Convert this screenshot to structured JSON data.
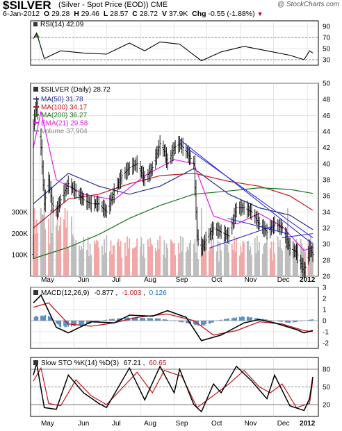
{
  "header": {
    "symbol": "$SILVER",
    "description": "(Silver - Spot Price (EOD))",
    "exchange": "CME",
    "credit": "@ StockCharts.com",
    "date": "6-Jan-2012",
    "open_label": "O",
    "open": "29.28",
    "high_label": "H",
    "high": "29.46",
    "low_label": "L",
    "low": "28.57",
    "close_label": "C",
    "close": "28.72",
    "volume_label": "V",
    "volume": "37.9K",
    "change_label": "Chg",
    "change": "-0.55 (-1.88%)"
  },
  "panels": {
    "rsi": {
      "label": "RSI(14) 42.09",
      "ticks": [
        30,
        50,
        70,
        90
      ],
      "levels": [
        30,
        70
      ],
      "fill_color": "#4c8a3c"
    },
    "price": {
      "label": "$SILVER (Daily) 28.72",
      "ticks": [
        26,
        28,
        30,
        32,
        34,
        36,
        38,
        40,
        42,
        44,
        46,
        48,
        50
      ],
      "volume_ticks": [
        "100K",
        "200K",
        "300K"
      ],
      "legend": [
        {
          "text": "MA(50) 31.78",
          "color": "#1f2a8a"
        },
        {
          "text": "MA(100) 34.17",
          "color": "#c0141c"
        },
        {
          "text": "MA(200) 36.27",
          "color": "#1f6e1f"
        },
        {
          "text": "EMA(21) 29.58",
          "color": "#e020e0"
        },
        {
          "text": "Volume 37,904",
          "color": "#888888"
        }
      ]
    },
    "macd": {
      "label_prefix": "MACD(12,26,9)",
      "macd_value": "-0.877",
      "signal_value": "-1.003",
      "hist_value": "0.126",
      "ticks": [
        -2,
        -1,
        0,
        1,
        2,
        3
      ]
    },
    "stoch": {
      "label_prefix": "Slow STO %K(14) %D(3)",
      "k_value": "67.21",
      "d_value": "60.65",
      "ticks": [
        20,
        50,
        80
      ]
    }
  },
  "xaxis": {
    "months": [
      "May",
      "Jun",
      "Jul",
      "Aug",
      "Sep",
      "Oct",
      "Nov",
      "Dec"
    ],
    "year_label": "2012"
  },
  "chart_data": {
    "type": "candlestick",
    "x_range": [
      "2011-04-25",
      "2012-01-06"
    ],
    "price_ylim": [
      26,
      50
    ],
    "price_points": [
      [
        "2011-04-25",
        45
      ],
      [
        "2011-04-28",
        47.5
      ],
      [
        "2011-05-02",
        42
      ],
      [
        "2011-05-05",
        35
      ],
      [
        "2011-05-09",
        38
      ],
      [
        "2011-05-12",
        35
      ],
      [
        "2011-05-16",
        34
      ],
      [
        "2011-05-20",
        35.5
      ],
      [
        "2011-05-27",
        37.5
      ],
      [
        "2011-06-03",
        36.5
      ],
      [
        "2011-06-10",
        35.5
      ],
      [
        "2011-06-17",
        35
      ],
      [
        "2011-06-24",
        35
      ],
      [
        "2011-07-01",
        34
      ],
      [
        "2011-07-08",
        36.5
      ],
      [
        "2011-07-15",
        38.5
      ],
      [
        "2011-07-22",
        39.5
      ],
      [
        "2011-07-29",
        40
      ],
      [
        "2011-08-05",
        38
      ],
      [
        "2011-08-12",
        39.5
      ],
      [
        "2011-08-19",
        42.5
      ],
      [
        "2011-08-23",
        41.5
      ],
      [
        "2011-08-26",
        40
      ],
      [
        "2011-09-01",
        42
      ],
      [
        "2011-09-06",
        42.5
      ],
      [
        "2011-09-12",
        41.5
      ],
      [
        "2011-09-19",
        40
      ],
      [
        "2011-09-22",
        31
      ],
      [
        "2011-09-26",
        29.5
      ],
      [
        "2011-09-30",
        30.5
      ],
      [
        "2011-10-07",
        32
      ],
      [
        "2011-10-14",
        31.5
      ],
      [
        "2011-10-21",
        31
      ],
      [
        "2011-10-28",
        34.5
      ],
      [
        "2011-11-04",
        34.5
      ],
      [
        "2011-11-11",
        34
      ],
      [
        "2011-11-18",
        32.5
      ],
      [
        "2011-11-25",
        31.5
      ],
      [
        "2011-12-02",
        32.5
      ],
      [
        "2011-12-09",
        32
      ],
      [
        "2011-12-16",
        29.5
      ],
      [
        "2011-12-22",
        29
      ],
      [
        "2011-12-29",
        26.5
      ],
      [
        "2012-01-03",
        29.5
      ],
      [
        "2012-01-06",
        28.72
      ]
    ],
    "moving_averages": {
      "MA(50)": [
        [
          "2011-04-25",
          35
        ],
        [
          "2011-05-27",
          38.8
        ],
        [
          "2011-06-24",
          37.2
        ],
        [
          "2011-07-22",
          36.2
        ],
        [
          "2011-08-19",
          37.2
        ],
        [
          "2011-09-19",
          39.4
        ],
        [
          "2011-10-21",
          36.2
        ],
        [
          "2011-11-18",
          34.5
        ],
        [
          "2011-12-16",
          33.6
        ],
        [
          "2012-01-06",
          31.8
        ]
      ],
      "MA(100)": [
        [
          "2011-04-25",
          32
        ],
        [
          "2011-05-27",
          35.6
        ],
        [
          "2011-06-24",
          36.2
        ],
        [
          "2011-07-22",
          37.5
        ],
        [
          "2011-08-19",
          38.5
        ],
        [
          "2011-09-19",
          38.8
        ],
        [
          "2011-10-21",
          37.8
        ],
        [
          "2011-11-18",
          37.2
        ],
        [
          "2011-12-16",
          36
        ],
        [
          "2012-01-06",
          34.2
        ]
      ],
      "MA(200)": [
        [
          "2011-04-25",
          28.2
        ],
        [
          "2011-05-27",
          29.6
        ],
        [
          "2011-06-24",
          31.2
        ],
        [
          "2011-07-22",
          33.2
        ],
        [
          "2011-08-19",
          34.8
        ],
        [
          "2011-09-19",
          36.2
        ],
        [
          "2011-10-21",
          36.6
        ],
        [
          "2011-11-18",
          37
        ],
        [
          "2011-12-16",
          36.8
        ],
        [
          "2012-01-06",
          36.3
        ]
      ],
      "EMA(21)": [
        [
          "2011-04-25",
          42
        ],
        [
          "2011-05-02",
          46.5
        ],
        [
          "2011-05-16",
          38
        ],
        [
          "2011-06-10",
          36.2
        ],
        [
          "2011-07-08",
          35.5
        ],
        [
          "2011-08-05",
          38.5
        ],
        [
          "2011-09-01",
          40.5
        ],
        [
          "2011-09-19",
          40
        ],
        [
          "2011-10-07",
          33.5
        ],
        [
          "2011-10-28",
          32.5
        ],
        [
          "2011-11-18",
          33.8
        ],
        [
          "2011-12-09",
          32.2
        ],
        [
          "2011-12-29",
          29.2
        ],
        [
          "2012-01-06",
          29.6
        ]
      ]
    },
    "trendlines": [
      [
        [
          "2011-09-06",
          43
        ],
        [
          "2012-01-06",
          30
        ]
      ],
      [
        [
          "2011-09-12",
          42
        ],
        [
          "2012-01-06",
          30.8
        ]
      ],
      [
        [
          "2011-10-03",
          29.5
        ],
        [
          "2011-12-02",
          32.3
        ]
      ],
      [
        [
          "2011-10-20",
          33.2
        ],
        [
          "2011-12-14",
          31.3
        ]
      ],
      [
        [
          "2011-12-09",
          30.8
        ],
        [
          "2012-01-06",
          31.3
        ]
      ]
    ],
    "volume_ylim": [
      0,
      350000
    ],
    "rsi_ylim": [
      20,
      100
    ],
    "rsi": [
      [
        "2011-04-25",
        68
      ],
      [
        "2011-04-28",
        78
      ],
      [
        "2011-05-05",
        32
      ],
      [
        "2011-05-20",
        46
      ],
      [
        "2011-06-10",
        42
      ],
      [
        "2011-07-01",
        40
      ],
      [
        "2011-07-22",
        60
      ],
      [
        "2011-08-05",
        46
      ],
      [
        "2011-08-19",
        62
      ],
      [
        "2011-09-06",
        58
      ],
      [
        "2011-09-26",
        28
      ],
      [
        "2011-10-14",
        44
      ],
      [
        "2011-11-04",
        54
      ],
      [
        "2011-11-25",
        46
      ],
      [
        "2011-12-16",
        38
      ],
      [
        "2011-12-29",
        30
      ],
      [
        "2012-01-03",
        46
      ],
      [
        "2012-01-06",
        42
      ]
    ],
    "macd_ylim": [
      -2.5,
      3
    ],
    "macd": [
      [
        "2011-04-25",
        1.6
      ],
      [
        "2011-05-02",
        2.3
      ],
      [
        "2011-05-16",
        -0.6
      ],
      [
        "2011-05-27",
        -1.1
      ],
      [
        "2011-06-17",
        -0.1
      ],
      [
        "2011-07-08",
        -0.2
      ],
      [
        "2011-07-22",
        0.5
      ],
      [
        "2011-08-12",
        0.4
      ],
      [
        "2011-08-26",
        0.9
      ],
      [
        "2011-09-12",
        0.3
      ],
      [
        "2011-09-26",
        -1.8
      ],
      [
        "2011-10-14",
        -1.3
      ],
      [
        "2011-11-04",
        -0.2
      ],
      [
        "2011-11-18",
        0.1
      ],
      [
        "2011-12-02",
        -0.2
      ],
      [
        "2011-12-22",
        -0.8
      ],
      [
        "2011-12-29",
        -1.1
      ],
      [
        "2012-01-06",
        -0.88
      ]
    ],
    "macd_signal": [
      [
        "2011-04-25",
        1.2
      ],
      [
        "2011-05-09",
        1.6
      ],
      [
        "2011-05-27",
        -0.3
      ],
      [
        "2011-06-17",
        -0.5
      ],
      [
        "2011-07-08",
        -0.2
      ],
      [
        "2011-07-29",
        0.3
      ],
      [
        "2011-08-26",
        0.6
      ],
      [
        "2011-09-19",
        0
      ],
      [
        "2011-10-07",
        -1.3
      ],
      [
        "2011-10-28",
        -0.9
      ],
      [
        "2011-11-18",
        -0.1
      ],
      [
        "2011-12-09",
        -0.3
      ],
      [
        "2011-12-29",
        -0.9
      ],
      [
        "2012-01-06",
        -1.0
      ]
    ],
    "macd_histogram": [
      [
        "2011-04-25",
        0.4
      ],
      [
        "2011-05-09",
        0.5
      ],
      [
        "2011-05-20",
        -0.6
      ],
      [
        "2011-06-10",
        -0.4
      ],
      [
        "2011-07-01",
        0.1
      ],
      [
        "2011-07-22",
        0.3
      ],
      [
        "2011-08-19",
        0.2
      ],
      [
        "2011-09-12",
        -0.2
      ],
      [
        "2011-09-26",
        -0.5
      ],
      [
        "2011-10-14",
        0.1
      ],
      [
        "2011-11-04",
        0.4
      ],
      [
        "2011-11-25",
        0.1
      ],
      [
        "2011-12-16",
        -0.2
      ],
      [
        "2012-01-06",
        0.13
      ]
    ],
    "stoch_ylim": [
      0,
      100
    ],
    "stoch_k": [
      [
        "2011-04-25",
        70
      ],
      [
        "2011-04-28",
        90
      ],
      [
        "2011-05-05",
        15
      ],
      [
        "2011-05-16",
        12
      ],
      [
        "2011-05-27",
        70
      ],
      [
        "2011-06-10",
        40
      ],
      [
        "2011-06-24",
        22
      ],
      [
        "2011-07-01",
        15
      ],
      [
        "2011-07-22",
        82
      ],
      [
        "2011-08-05",
        28
      ],
      [
        "2011-08-19",
        85
      ],
      [
        "2011-09-01",
        40
      ],
      [
        "2011-09-06",
        80
      ],
      [
        "2011-09-19",
        20
      ],
      [
        "2011-09-26",
        8
      ],
      [
        "2011-10-07",
        55
      ],
      [
        "2011-10-14",
        40
      ],
      [
        "2011-10-28",
        85
      ],
      [
        "2011-11-11",
        60
      ],
      [
        "2011-11-25",
        30
      ],
      [
        "2011-12-02",
        70
      ],
      [
        "2011-12-16",
        18
      ],
      [
        "2011-12-29",
        10
      ],
      [
        "2012-01-03",
        30
      ],
      [
        "2012-01-06",
        67
      ]
    ],
    "stoch_d": [
      [
        "2011-04-25",
        60
      ],
      [
        "2011-05-02",
        82
      ],
      [
        "2011-05-09",
        22
      ],
      [
        "2011-05-20",
        18
      ],
      [
        "2011-06-03",
        62
      ],
      [
        "2011-06-17",
        35
      ],
      [
        "2011-07-01",
        20
      ],
      [
        "2011-07-29",
        75
      ],
      [
        "2011-08-12",
        40
      ],
      [
        "2011-08-23",
        78
      ],
      [
        "2011-09-08",
        68
      ],
      [
        "2011-09-22",
        15
      ],
      [
        "2011-10-03",
        30
      ],
      [
        "2011-10-21",
        55
      ],
      [
        "2011-11-04",
        78
      ],
      [
        "2011-11-18",
        50
      ],
      [
        "2011-11-28",
        40
      ],
      [
        "2011-12-09",
        55
      ],
      [
        "2011-12-22",
        15
      ],
      [
        "2012-01-03",
        22
      ],
      [
        "2012-01-06",
        61
      ]
    ]
  }
}
